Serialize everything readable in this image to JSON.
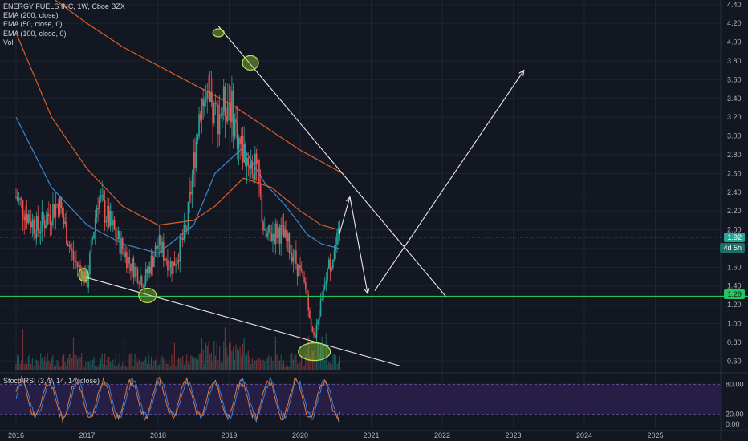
{
  "title": "ENERGY FUELS INC, 1W, Cboe BZX",
  "indicators": [
    "EMA (200, close)",
    "EMA (50, close, 0)",
    "EMA (100, close, 0)",
    "Vol"
  ],
  "rsi_label": "Stoch RSI (3, 3, 14, 14, close)",
  "colors": {
    "background": "#131722",
    "grid": "#1f2330",
    "up": "#26a69a",
    "down": "#ef5350",
    "ema50": "#3a88c9",
    "ema100": "#d6602a",
    "support_line": "#22c55e",
    "drawing": "#e8e8e8",
    "circle": "#8ac73a",
    "rsi_k": "#3b7fd4",
    "rsi_d": "#e07b39",
    "rsi_band": "#2a1f4a"
  },
  "chart_data": {
    "type": "candlestick",
    "ylim": [
      0.5,
      4.45
    ],
    "y_ticks": [
      "4.40",
      "4.20",
      "4.00",
      "3.80",
      "3.60",
      "3.40",
      "3.20",
      "3.00",
      "2.80",
      "2.60",
      "2.40",
      "2.20",
      "2.00",
      "1.80",
      "1.60",
      "1.40",
      "1.20",
      "1.00",
      "0.80",
      "0.60"
    ],
    "x_ticks": [
      "2016",
      "2017",
      "2018",
      "2019",
      "2020",
      "2021",
      "2022",
      "2023",
      "2024",
      "2025"
    ],
    "last_price": "1.92",
    "countdown": "4d 5h",
    "support_price": "1.29",
    "price_key_points": [
      {
        "x": 2016.0,
        "y": 2.35
      },
      {
        "x": 2016.3,
        "y": 2.0
      },
      {
        "x": 2016.6,
        "y": 2.3
      },
      {
        "x": 2016.8,
        "y": 1.7
      },
      {
        "x": 2017.0,
        "y": 1.45
      },
      {
        "x": 2017.15,
        "y": 2.35
      },
      {
        "x": 2017.4,
        "y": 1.95
      },
      {
        "x": 2017.6,
        "y": 1.65
      },
      {
        "x": 2017.8,
        "y": 1.45
      },
      {
        "x": 2018.0,
        "y": 1.85
      },
      {
        "x": 2018.2,
        "y": 1.6
      },
      {
        "x": 2018.4,
        "y": 2.0
      },
      {
        "x": 2018.6,
        "y": 3.4
      },
      {
        "x": 2018.8,
        "y": 3.2
      },
      {
        "x": 2019.0,
        "y": 3.4
      },
      {
        "x": 2019.15,
        "y": 2.9
      },
      {
        "x": 2019.4,
        "y": 2.6
      },
      {
        "x": 2019.5,
        "y": 1.9
      },
      {
        "x": 2019.7,
        "y": 2.0
      },
      {
        "x": 2019.9,
        "y": 1.75
      },
      {
        "x": 2020.1,
        "y": 1.3
      },
      {
        "x": 2020.2,
        "y": 0.8
      },
      {
        "x": 2020.35,
        "y": 1.5
      },
      {
        "x": 2020.45,
        "y": 1.7
      },
      {
        "x": 2020.55,
        "y": 1.92
      }
    ],
    "ema50": [
      {
        "x": 2016.0,
        "y": 3.2
      },
      {
        "x": 2016.5,
        "y": 2.45
      },
      {
        "x": 2017.0,
        "y": 2.05
      },
      {
        "x": 2017.5,
        "y": 1.85
      },
      {
        "x": 2018.0,
        "y": 1.75
      },
      {
        "x": 2018.5,
        "y": 2.05
      },
      {
        "x": 2018.8,
        "y": 2.6
      },
      {
        "x": 2019.2,
        "y": 2.88
      },
      {
        "x": 2019.5,
        "y": 2.5
      },
      {
        "x": 2019.8,
        "y": 2.25
      },
      {
        "x": 2020.1,
        "y": 1.95
      },
      {
        "x": 2020.3,
        "y": 1.85
      },
      {
        "x": 2020.55,
        "y": 1.8
      }
    ],
    "ema100": [
      {
        "x": 2016.0,
        "y": 4.1
      },
      {
        "x": 2016.5,
        "y": 3.2
      },
      {
        "x": 2017.0,
        "y": 2.65
      },
      {
        "x": 2017.5,
        "y": 2.25
      },
      {
        "x": 2018.0,
        "y": 2.05
      },
      {
        "x": 2018.5,
        "y": 2.1
      },
      {
        "x": 2018.8,
        "y": 2.25
      },
      {
        "x": 2019.2,
        "y": 2.55
      },
      {
        "x": 2019.6,
        "y": 2.45
      },
      {
        "x": 2020.0,
        "y": 2.2
      },
      {
        "x": 2020.3,
        "y": 2.05
      },
      {
        "x": 2020.55,
        "y": 2.0
      }
    ],
    "ema200": [
      {
        "x": 2016.55,
        "y": 4.45
      },
      {
        "x": 2017.0,
        "y": 4.2
      },
      {
        "x": 2017.5,
        "y": 3.95
      },
      {
        "x": 2018.0,
        "y": 3.75
      },
      {
        "x": 2018.5,
        "y": 3.55
      },
      {
        "x": 2019.0,
        "y": 3.35
      },
      {
        "x": 2019.5,
        "y": 3.1
      },
      {
        "x": 2020.0,
        "y": 2.85
      },
      {
        "x": 2020.6,
        "y": 2.6
      }
    ],
    "drawings": {
      "resistance": [
        {
          "x": 2018.85,
          "y": 4.17
        },
        {
          "x": 2022.05,
          "y": 1.29
        }
      ],
      "lower_trend": [
        {
          "x": 2016.95,
          "y": 1.5
        },
        {
          "x": 2021.4,
          "y": 0.55
        }
      ],
      "support_y": 1.29,
      "projection": [
        {
          "x": 2020.55,
          "y": 1.95
        },
        {
          "x": 2020.7,
          "y": 2.35
        },
        {
          "x": 2020.95,
          "y": 1.32
        }
      ],
      "up_arrow": [
        {
          "x": 2021.05,
          "y": 1.35
        },
        {
          "x": 2023.15,
          "y": 3.7
        }
      ],
      "circles": [
        {
          "x": 2018.85,
          "y": 4.1,
          "r": 7,
          "ry": 5
        },
        {
          "x": 2019.3,
          "y": 3.78,
          "r": 10,
          "ry": 9
        },
        {
          "x": 2016.95,
          "y": 1.52,
          "r": 6,
          "ry": 8
        },
        {
          "x": 2017.85,
          "y": 1.3,
          "r": 11,
          "ry": 9
        },
        {
          "x": 2020.2,
          "y": 0.7,
          "r": 20,
          "ry": 11
        }
      ]
    },
    "stoch_rsi": {
      "ylim": [
        -5,
        95
      ],
      "y_ticks": [
        "80.00",
        "20.00",
        "0.00"
      ],
      "band": [
        20,
        80
      ]
    }
  }
}
